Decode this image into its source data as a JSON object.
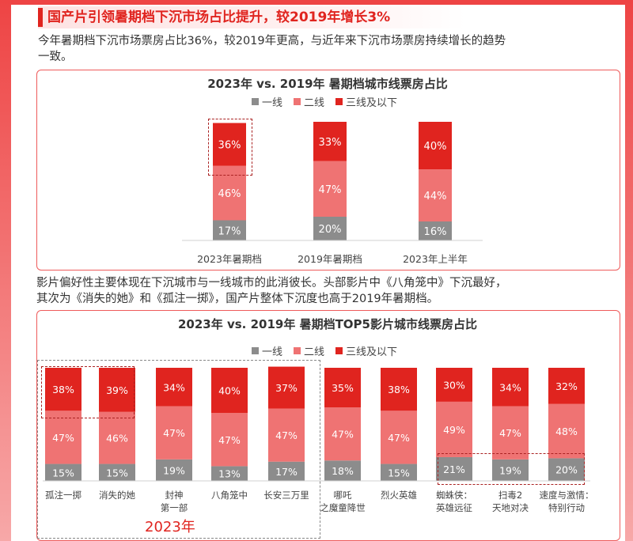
{
  "header": {
    "title": "国产片引领暑期档下沉市场占比提升，较2019年增长3%"
  },
  "para1": {
    "line1": "今年暑期档下沉市场票房占比36%，较2019年更高，与近年来下沉市场票房持续增长的趋势",
    "line2": "一致。"
  },
  "para2": {
    "line1": "影片偏好性主要体现在下沉城市与一线城市的此消彼长。头部影片中《八角笼中》下沉最好，",
    "line2": "其次为《消失的她》和《孤注一掷》，国产片整体下沉度也高于2019年暑期档。"
  },
  "chart1_title": "2023年 vs. 2019年 暑期档城市线票房占比",
  "chart2_title": "2023年 vs. 2019年 暑期档TOP5影片城市线票房占比",
  "legend": [
    "一线",
    "二线",
    "三线及以下"
  ],
  "year_tag": "2023年",
  "colors": {
    "tier1": "#8c8c8c",
    "tier2": "#ef7373",
    "tier3": "#e0241f",
    "accent": "#e0241f"
  },
  "chart_data": [
    {
      "type": "bar",
      "stacked": true,
      "percent": true,
      "title": "2023年 vs. 2019年 暑期档城市线票房占比",
      "categories": [
        "2023年暑期档",
        "2019年暑期档",
        "2023年上半年"
      ],
      "series": [
        {
          "name": "一线",
          "values": [
            17,
            20,
            16
          ]
        },
        {
          "name": "二线",
          "values": [
            46,
            47,
            44
          ]
        },
        {
          "name": "三线及以下",
          "values": [
            36,
            33,
            40
          ]
        }
      ],
      "legend": "top"
    },
    {
      "type": "bar",
      "stacked": true,
      "percent": true,
      "title": "2023年 vs. 2019年 暑期档TOP5影片城市线票房占比",
      "categories": [
        "孤注一掷",
        "消失的她",
        "封神\n第一部",
        "八角笼中",
        "长安三万里",
        "哪吒\n之魔童降世",
        "烈火英雄",
        "蜘蛛侠：\n英雄远征",
        "扫毒2\n天地对决",
        "速度与激情：\n特别行动"
      ],
      "series": [
        {
          "name": "一线",
          "values": [
            15,
            15,
            19,
            13,
            17,
            18,
            15,
            21,
            19,
            20
          ]
        },
        {
          "name": "二线",
          "values": [
            47,
            46,
            47,
            47,
            47,
            47,
            47,
            49,
            47,
            48
          ]
        },
        {
          "name": "三线及以下",
          "values": [
            38,
            39,
            34,
            40,
            37,
            35,
            38,
            30,
            34,
            32
          ]
        }
      ],
      "legend": "top"
    }
  ]
}
